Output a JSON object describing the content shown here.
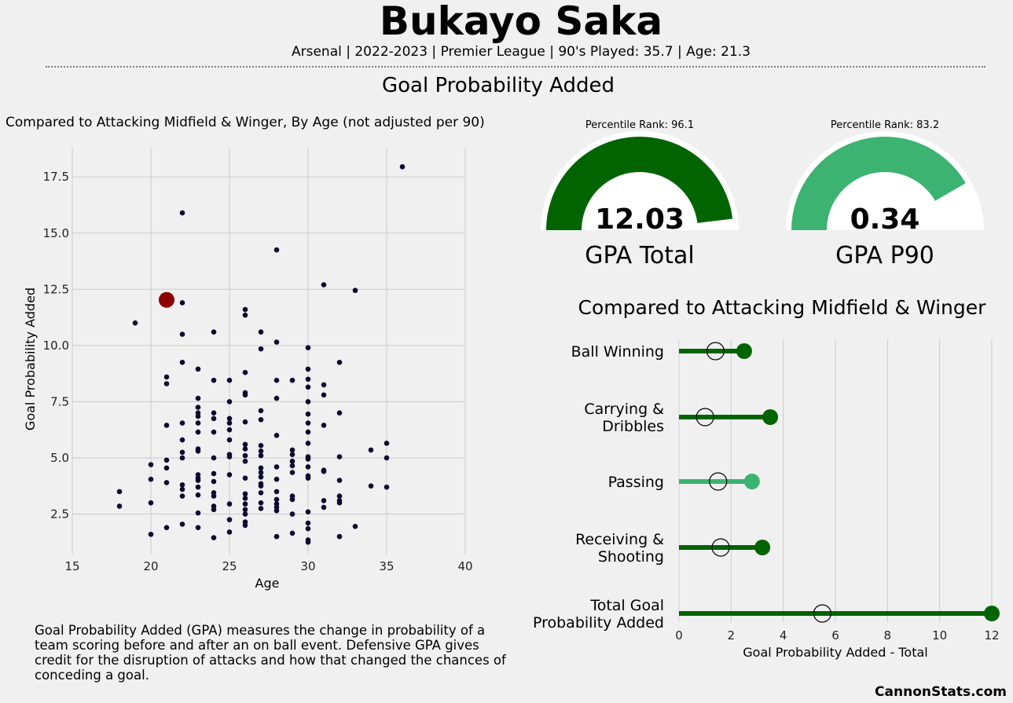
{
  "header": {
    "title": "Bukayo Saka",
    "subtitle": "Arsenal | 2022-2023 | Premier League | 90's Played: 35.7 | Age: 21.3",
    "section_title": "Goal Probability Added"
  },
  "scatter": {
    "heading": "Compared to Attacking Midfield & Winger, By Age (not adjusted per 90)"
  },
  "gauges": [
    {
      "percentile_label": "Percentile Rank: 96.1",
      "percentile": 96.1,
      "value": "12.03",
      "label": "GPA Total",
      "color": "#006400"
    },
    {
      "percentile_label": "Percentile Rank: 83.2",
      "percentile": 83.2,
      "value": "0.34",
      "label": "GPA P90",
      "color": "#3cb371"
    }
  ],
  "lollipop": {
    "title": "Compared to Attacking Midfield & Winger"
  },
  "description": "Goal Probability Added (GPA) measures the change in probability of a team scoring before and after an on ball event. Defensive GPA gives credit for the disruption of attacks and how that changed the chances of conceding a goal.",
  "footer": "CannonStats.com",
  "colors": {
    "background": "#f0f0f0",
    "scatter_points": "#0d0a2e",
    "highlight": "#8b0000",
    "dark_green": "#006400",
    "light_green": "#3cb371",
    "grid": "#cbcbcb"
  },
  "chart_data": [
    {
      "type": "scatter",
      "xlabel": "Age",
      "ylabel": "Goal Probability Added",
      "xlim": [
        15,
        40
      ],
      "ylim": [
        0.7,
        18.8
      ],
      "xticks": [
        15,
        20,
        25,
        30,
        35,
        40
      ],
      "yticks": [
        2.5,
        5.0,
        7.5,
        10.0,
        12.5,
        15.0,
        17.5
      ],
      "grid": true,
      "highlight": {
        "x": 21,
        "y": 12.03
      },
      "points": [
        [
          18,
          3.5
        ],
        [
          18,
          2.85
        ],
        [
          19,
          11.0
        ],
        [
          20,
          4.7
        ],
        [
          20,
          4.05
        ],
        [
          20,
          3.0
        ],
        [
          20,
          1.6
        ],
        [
          21,
          8.6
        ],
        [
          21,
          8.3
        ],
        [
          21,
          6.45
        ],
        [
          21,
          4.9
        ],
        [
          21,
          4.55
        ],
        [
          21,
          3.9
        ],
        [
          21,
          1.9
        ],
        [
          22,
          15.9
        ],
        [
          22,
          11.9
        ],
        [
          22,
          10.5
        ],
        [
          22,
          9.25
        ],
        [
          22,
          6.55
        ],
        [
          22,
          5.8
        ],
        [
          22,
          5.25
        ],
        [
          22,
          5.0
        ],
        [
          22,
          3.8
        ],
        [
          22,
          3.6
        ],
        [
          22,
          3.3
        ],
        [
          22,
          2.05
        ],
        [
          23,
          8.95
        ],
        [
          23,
          7.65
        ],
        [
          23,
          7.25
        ],
        [
          23,
          7.0
        ],
        [
          23,
          6.85
        ],
        [
          23,
          6.55
        ],
        [
          23,
          6.15
        ],
        [
          23,
          5.4
        ],
        [
          23,
          5.3
        ],
        [
          23,
          4.25
        ],
        [
          23,
          4.1
        ],
        [
          23,
          4.0
        ],
        [
          23,
          3.7
        ],
        [
          23,
          3.35
        ],
        [
          23,
          2.55
        ],
        [
          23,
          1.9
        ],
        [
          24,
          10.6
        ],
        [
          24,
          8.45
        ],
        [
          24,
          7.0
        ],
        [
          24,
          6.75
        ],
        [
          24,
          6.15
        ],
        [
          24,
          5.0
        ],
        [
          24,
          4.3
        ],
        [
          24,
          3.95
        ],
        [
          24,
          3.45
        ],
        [
          24,
          3.3
        ],
        [
          24,
          2.85
        ],
        [
          24,
          2.7
        ],
        [
          24,
          1.45
        ],
        [
          25,
          8.45
        ],
        [
          25,
          7.5
        ],
        [
          25,
          6.75
        ],
        [
          25,
          6.55
        ],
        [
          25,
          6.25
        ],
        [
          25,
          5.8
        ],
        [
          25,
          5.15
        ],
        [
          25,
          5.05
        ],
        [
          25,
          4.25
        ],
        [
          25,
          2.95
        ],
        [
          25,
          2.25
        ],
        [
          25,
          1.7
        ],
        [
          26,
          11.6
        ],
        [
          26,
          11.35
        ],
        [
          26,
          8.8
        ],
        [
          26,
          7.9
        ],
        [
          26,
          7.8
        ],
        [
          26,
          6.6
        ],
        [
          26,
          5.6
        ],
        [
          26,
          5.4
        ],
        [
          26,
          5.1
        ],
        [
          26,
          4.85
        ],
        [
          26,
          4.1
        ],
        [
          26,
          3.4
        ],
        [
          26,
          3.2
        ],
        [
          26,
          2.95
        ],
        [
          26,
          2.7
        ],
        [
          26,
          2.5
        ],
        [
          26,
          2.15
        ],
        [
          26,
          2.0
        ],
        [
          27,
          10.6
        ],
        [
          27,
          9.85
        ],
        [
          27,
          7.1
        ],
        [
          27,
          6.7
        ],
        [
          27,
          5.55
        ],
        [
          27,
          5.3
        ],
        [
          27,
          5.1
        ],
        [
          27,
          4.55
        ],
        [
          27,
          4.35
        ],
        [
          27,
          4.15
        ],
        [
          27,
          3.85
        ],
        [
          27,
          3.75
        ],
        [
          27,
          3.45
        ],
        [
          27,
          3.0
        ],
        [
          27,
          2.75
        ],
        [
          28,
          14.25
        ],
        [
          28,
          10.15
        ],
        [
          28,
          8.45
        ],
        [
          28,
          7.65
        ],
        [
          28,
          6.0
        ],
        [
          28,
          4.6
        ],
        [
          28,
          4.05
        ],
        [
          28,
          3.5
        ],
        [
          28,
          3.15
        ],
        [
          28,
          2.95
        ],
        [
          28,
          2.8
        ],
        [
          28,
          2.65
        ],
        [
          28,
          1.5
        ],
        [
          29,
          8.45
        ],
        [
          29,
          5.35
        ],
        [
          29,
          5.15
        ],
        [
          29,
          4.85
        ],
        [
          29,
          4.65
        ],
        [
          29,
          4.35
        ],
        [
          29,
          3.3
        ],
        [
          29,
          3.15
        ],
        [
          29,
          2.5
        ],
        [
          29,
          1.65
        ],
        [
          30,
          9.9
        ],
        [
          30,
          8.95
        ],
        [
          30,
          8.5
        ],
        [
          30,
          8.15
        ],
        [
          30,
          7.5
        ],
        [
          30,
          6.95
        ],
        [
          30,
          6.55
        ],
        [
          30,
          6.15
        ],
        [
          30,
          5.65
        ],
        [
          30,
          5.05
        ],
        [
          30,
          4.95
        ],
        [
          30,
          4.6
        ],
        [
          30,
          4.2
        ],
        [
          30,
          4.1
        ],
        [
          30,
          2.6
        ],
        [
          30,
          2.1
        ],
        [
          30,
          1.85
        ],
        [
          30,
          1.35
        ],
        [
          30,
          1.25
        ],
        [
          31,
          12.7
        ],
        [
          31,
          8.25
        ],
        [
          31,
          7.8
        ],
        [
          31,
          6.45
        ],
        [
          31,
          4.45
        ],
        [
          31,
          4.4
        ],
        [
          31,
          3.1
        ],
        [
          31,
          2.8
        ],
        [
          32,
          9.25
        ],
        [
          32,
          7.0
        ],
        [
          32,
          5.05
        ],
        [
          32,
          4.0
        ],
        [
          32,
          3.3
        ],
        [
          32,
          3.1
        ],
        [
          32,
          3.0
        ],
        [
          32,
          1.5
        ],
        [
          33,
          12.45
        ],
        [
          33,
          1.95
        ],
        [
          34,
          5.35
        ],
        [
          34,
          3.75
        ],
        [
          35,
          5.65
        ],
        [
          35,
          5.0
        ],
        [
          35,
          3.7
        ],
        [
          36,
          17.95
        ]
      ]
    },
    {
      "type": "bar",
      "xlabel": "Goal Probability Added - Total",
      "xlim": [
        0,
        12
      ],
      "xticks": [
        0,
        2,
        4,
        6,
        8,
        10,
        12
      ],
      "grid": true,
      "categories": [
        "Ball Winning",
        "Carrying & Dribbles",
        "Passing",
        "Receiving & Shooting",
        "Total Goal Probability Added"
      ],
      "player": [
        2.5,
        3.5,
        2.8,
        3.2,
        12.0
      ],
      "comparison": [
        1.4,
        1.0,
        1.5,
        1.6,
        5.5
      ],
      "bar_colors": [
        "#006400",
        "#006400",
        "#3cb371",
        "#006400",
        "#006400"
      ]
    }
  ]
}
